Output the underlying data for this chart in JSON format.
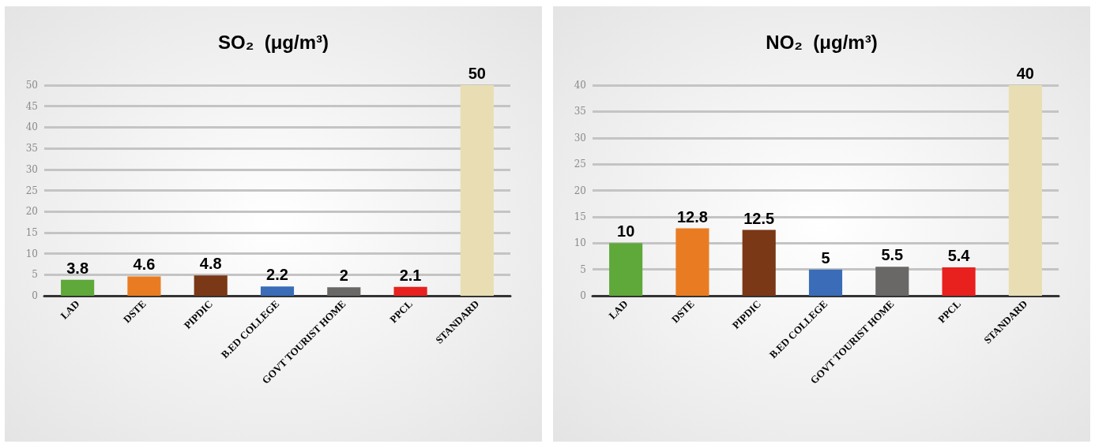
{
  "chart_data": [
    {
      "type": "bar",
      "title": "SO₂  (μg/m³)",
      "categories": [
        "LAD",
        "DSTE",
        "PIPDIC",
        "B.ED COLLEGE",
        "GOVT TOURIST HOME",
        "PPCL",
        "STANDARD"
      ],
      "values": [
        3.8,
        4.6,
        4.8,
        2.2,
        2,
        2.1,
        50
      ],
      "colors": [
        "#5fa83a",
        "#e97c22",
        "#7a3816",
        "#3a6cb8",
        "#6a6767",
        "#e8201e",
        "#e9deb3"
      ],
      "ylim": [
        0,
        50
      ],
      "yticks": [
        0,
        5,
        10,
        15,
        20,
        25,
        30,
        35,
        40,
        45,
        50
      ],
      "grid": "y",
      "data_labels": true
    },
    {
      "type": "bar",
      "title": "NO₂  (μg/m³)",
      "categories": [
        "LAD",
        "DSTE",
        "PIPDIC",
        "B.ED COLLEGE",
        "GOVT TOURIST HOME",
        "PPCL",
        "STANDARD"
      ],
      "values": [
        10,
        12.8,
        12.5,
        5,
        5.5,
        5.4,
        40
      ],
      "colors": [
        "#5fa83a",
        "#e97c22",
        "#7a3816",
        "#3a6cb8",
        "#6a6767",
        "#e8201e",
        "#e9deb3"
      ],
      "ylim": [
        0,
        40
      ],
      "yticks": [
        0,
        5,
        10,
        15,
        20,
        25,
        30,
        35,
        40
      ],
      "grid": "y",
      "data_labels": true
    }
  ]
}
